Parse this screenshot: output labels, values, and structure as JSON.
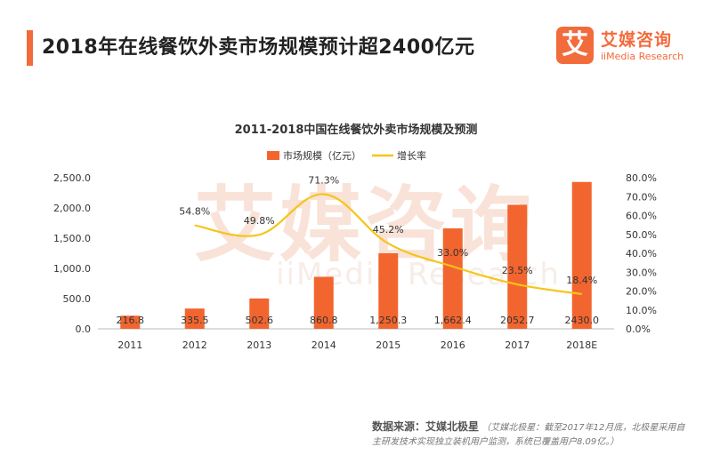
{
  "header": {
    "title": "2018年在线餐饮外卖市场规模预计超2400亿元"
  },
  "logo": {
    "mark": "艾",
    "name_cn": "艾媒咨询",
    "name_en": "iiMedia Research",
    "watermark_cn": "艾媒咨询",
    "watermark_en": "iiMedia Research"
  },
  "colors": {
    "accent": "#f26b3a",
    "bar": "#f2652e",
    "line": "#f5c518"
  },
  "chart_data": {
    "type": "bar",
    "title": "2011-2018中国在线餐饮外卖市场规模及预测",
    "categories": [
      "2011",
      "2012",
      "2013",
      "2014",
      "2015",
      "2016",
      "2017",
      "2018E"
    ],
    "series": [
      {
        "name": "市场规模（亿元）",
        "type": "bar",
        "axis": "left",
        "values": [
          216.8,
          335.5,
          502.6,
          860.8,
          1250.3,
          1662.4,
          2052.7,
          2430.0
        ],
        "labels": [
          "216.8",
          "335.5",
          "502.6",
          "860.8",
          "1,250.3",
          "1,662.4",
          "2052.7",
          "2430.0"
        ]
      },
      {
        "name": "增长率",
        "type": "line",
        "axis": "right",
        "values": [
          null,
          54.8,
          49.8,
          71.3,
          45.2,
          33.0,
          23.5,
          18.4
        ],
        "labels": [
          "",
          "54.8%",
          "49.8%",
          "71.3%",
          "45.2%",
          "33.0%",
          "23.5%",
          "18.4%"
        ]
      }
    ],
    "y_left": {
      "ylim": [
        0,
        2500
      ],
      "ticks": [
        "0.0",
        "500.0",
        "1,000.0",
        "1,500.0",
        "2,000.0",
        "2,500.0"
      ]
    },
    "y_right": {
      "ylim": [
        0,
        80
      ],
      "ticks": [
        "0.0%",
        "10.0%",
        "20.0%",
        "30.0%",
        "40.0%",
        "50.0%",
        "60.0%",
        "70.0%",
        "80.0%"
      ]
    },
    "legend_position": "top-center",
    "grid": false
  },
  "source": {
    "label": "数据来源：艾媒北极星",
    "note": "（艾媒北极星：截至2017年12月底，北极星采用自主研发技术实现独立装机用户监测，系统已覆盖用户8.09亿。）"
  }
}
